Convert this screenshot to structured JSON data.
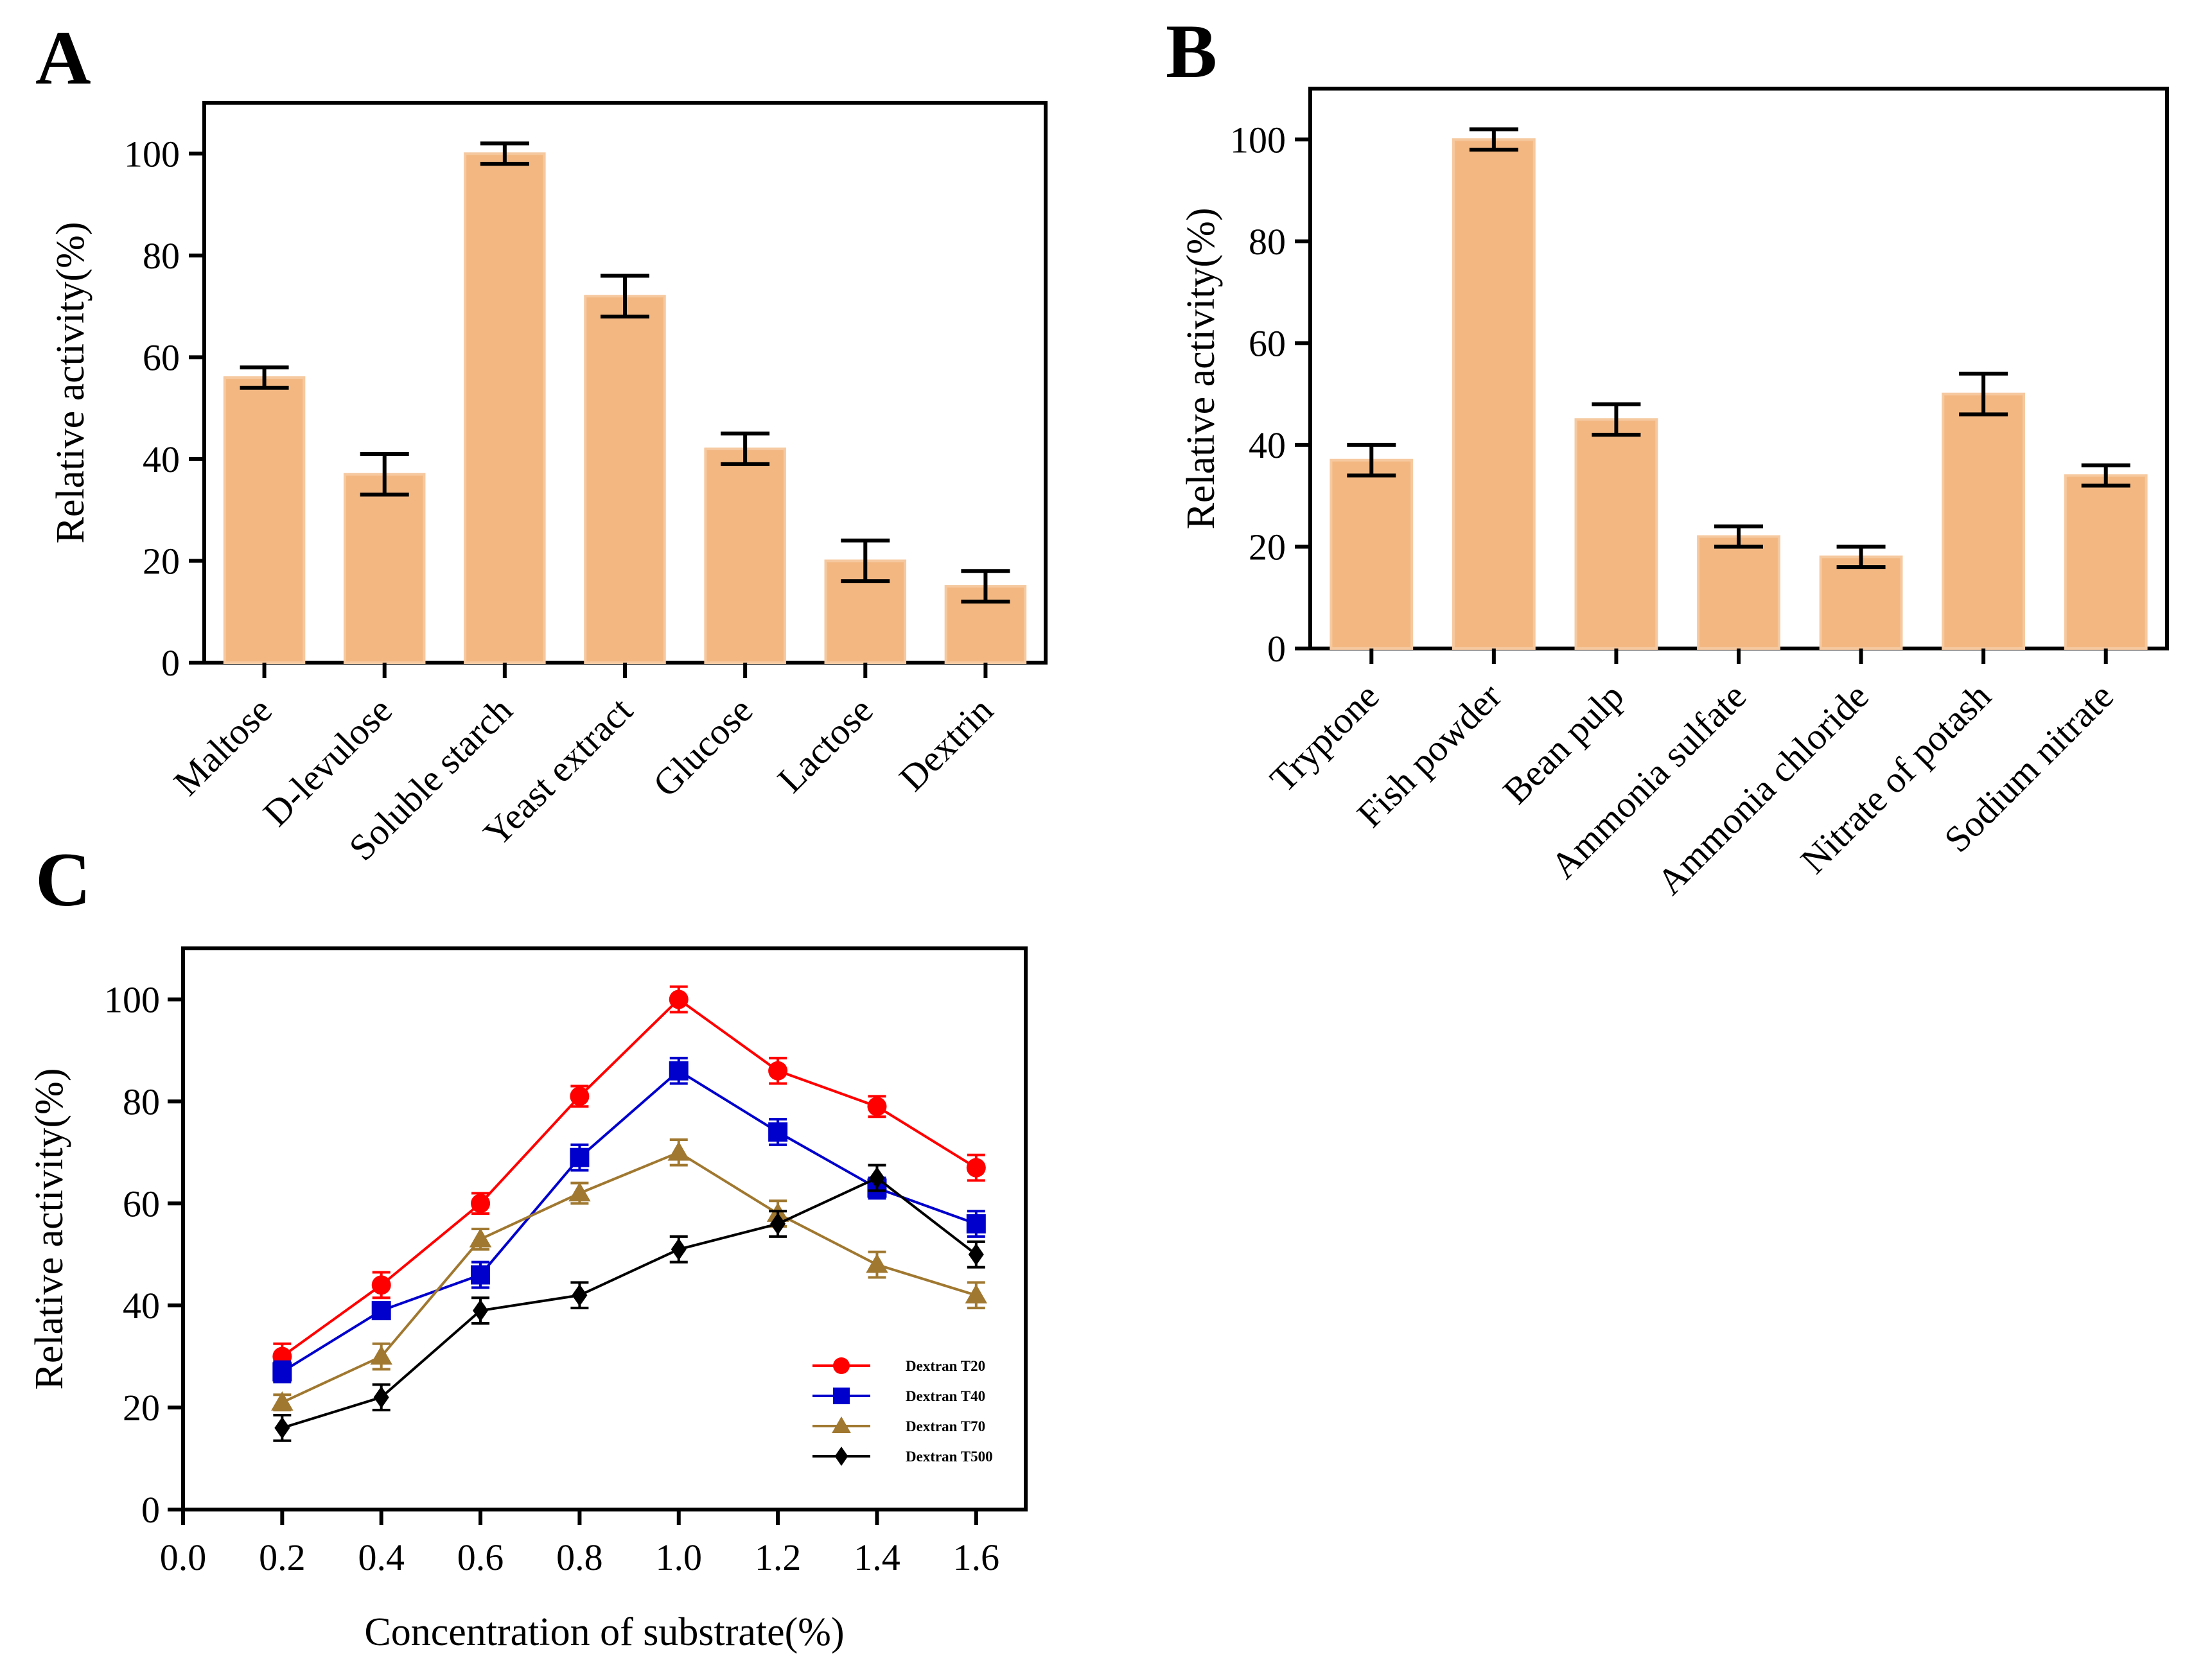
{
  "colors": {
    "bar_fill": "#F3B882",
    "bar_stroke": "#F6C9A0",
    "axis": "#000000",
    "t20": "#FF0000",
    "t40": "#0000CC",
    "t70": "#A07830",
    "t500": "#000000"
  },
  "chart_data": [
    {
      "panel": "A",
      "type": "bar",
      "ylabel": "Relative activity(%)",
      "ylim": [
        0,
        110
      ],
      "yticks": [
        0,
        20,
        40,
        60,
        80,
        100
      ],
      "categories": [
        "Maltose",
        "D-levulose",
        "Soluble starch",
        "Yeast extract",
        "Glucose",
        "Lactose",
        "Dextrin"
      ],
      "values": [
        56,
        37,
        100,
        72,
        42,
        20,
        15
      ],
      "errors": [
        2,
        4,
        2,
        4,
        3,
        4,
        3
      ]
    },
    {
      "panel": "B",
      "type": "bar",
      "ylabel": "Relative activity(%)",
      "ylim": [
        0,
        110
      ],
      "yticks": [
        0,
        20,
        40,
        60,
        80,
        100
      ],
      "categories": [
        "Tryptone",
        "Fish powder",
        "Bean pulp",
        "Ammonia sulfate",
        "Ammonia chloride",
        "Nitrate of potash",
        "Sodium nitrate"
      ],
      "values": [
        37,
        100,
        45,
        22,
        18,
        50,
        34
      ],
      "errors": [
        3,
        2,
        3,
        2,
        2,
        4,
        2
      ]
    },
    {
      "panel": "C",
      "type": "line",
      "xlabel": "Concentration of substrate(%)",
      "ylabel": "Relative activity(%)",
      "xlim": [
        0.0,
        1.7
      ],
      "ylim": [
        0,
        110
      ],
      "xticks": [
        "0.0",
        "0.2",
        "0.4",
        "0.6",
        "0.8",
        "1.0",
        "1.2",
        "1.4",
        "1.6"
      ],
      "yticks": [
        0,
        20,
        40,
        60,
        80,
        100
      ],
      "x": [
        0.2,
        0.4,
        0.6,
        0.8,
        1.0,
        1.2,
        1.4,
        1.6
      ],
      "series": [
        {
          "name": "Dextran T20",
          "marker": "circle",
          "color_key": "t20",
          "values": [
            30,
            44,
            60,
            81,
            100,
            86,
            79,
            67
          ],
          "errors": [
            2.5,
            2.5,
            2,
            2,
            2.5,
            2.5,
            2,
            2.5
          ]
        },
        {
          "name": "Dextran T40",
          "marker": "square",
          "color_key": "t40",
          "values": [
            27,
            39,
            46,
            69,
            86,
            74,
            63,
            56
          ],
          "errors": [
            2,
            1.5,
            2.5,
            2.5,
            2.5,
            2.5,
            2,
            2.5
          ]
        },
        {
          "name": "Dextran T70",
          "marker": "triangle",
          "color_key": "t70",
          "values": [
            21,
            30,
            53,
            62,
            70,
            58,
            48,
            42
          ],
          "errors": [
            1.5,
            2.5,
            2,
            2,
            2.5,
            2.5,
            2.5,
            2.5
          ]
        },
        {
          "name": "Dextran T500",
          "marker": "diamond",
          "color_key": "t500",
          "values": [
            16,
            22,
            39,
            42,
            51,
            56,
            65,
            50
          ],
          "errors": [
            2.5,
            2.5,
            2.5,
            2.5,
            2.5,
            2.5,
            2.5,
            2.5
          ]
        }
      ]
    }
  ]
}
